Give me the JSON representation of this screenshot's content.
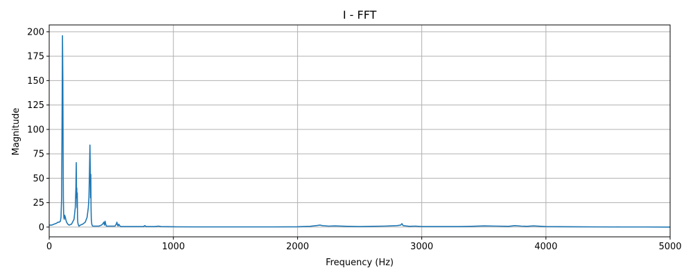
{
  "chart_data": {
    "type": "line",
    "title": "I - FFT",
    "xlabel": "Frequency (Hz)",
    "ylabel": "Magnitude",
    "xlim": [
      0,
      5000
    ],
    "ylim": [
      -10,
      207
    ],
    "xticks": [
      0,
      1000,
      2000,
      3000,
      4000,
      5000
    ],
    "xtick_labels": [
      "0",
      "1000",
      "2000",
      "3000",
      "4000",
      "5000"
    ],
    "yticks": [
      0,
      25,
      50,
      75,
      100,
      125,
      150,
      175,
      200
    ],
    "ytick_labels": [
      "0",
      "25",
      "50",
      "75",
      "100",
      "125",
      "150",
      "175",
      "200"
    ],
    "grid": true,
    "series": [
      {
        "color": "#1f77b4",
        "x": [
          0,
          20,
          40,
          60,
          70,
          80,
          90,
          95,
          100,
          104,
          107,
          110,
          112,
          114,
          116,
          118,
          121,
          125,
          130,
          135,
          140,
          150,
          160,
          180,
          200,
          210,
          215,
          218,
          220,
          222,
          224,
          226,
          228,
          230,
          233,
          236,
          240,
          250,
          270,
          290,
          305,
          315,
          320,
          325,
          328,
          331,
          333,
          335,
          337,
          339,
          341,
          343,
          345,
          350,
          360,
          380,
          400,
          420,
          430,
          440,
          445,
          450,
          455,
          460,
          470,
          500,
          530,
          540,
          545,
          550,
          555,
          560,
          570,
          580,
          600,
          650,
          700,
          760,
          770,
          780,
          800,
          850,
          880,
          900,
          1000,
          1200,
          1500,
          1800,
          2000,
          2100,
          2150,
          2180,
          2200,
          2250,
          2300,
          2400,
          2500,
          2600,
          2700,
          2750,
          2800,
          2830,
          2840,
          2850,
          2900,
          2950,
          3000,
          3100,
          3200,
          3300,
          3400,
          3500,
          3600,
          3700,
          3750,
          3800,
          3850,
          3900,
          4000,
          4200,
          4400,
          4600,
          4800,
          5000
        ],
        "y": [
          2,
          2,
          3,
          4,
          5,
          5,
          6,
          10,
          30,
          120,
          196,
          150,
          80,
          30,
          15,
          10,
          8,
          12,
          10,
          7,
          5,
          3,
          2,
          3,
          8,
          20,
          40,
          66,
          30,
          40,
          20,
          35,
          10,
          5,
          3,
          2,
          1,
          2,
          3,
          5,
          10,
          20,
          30,
          60,
          84,
          55,
          30,
          54,
          20,
          8,
          5,
          3,
          2,
          1,
          1,
          1,
          1,
          2,
          3,
          5,
          2,
          6,
          3,
          1,
          1,
          1,
          1,
          3,
          5,
          2,
          1,
          3,
          1,
          0.5,
          0.5,
          0.5,
          0.5,
          0.5,
          1.5,
          0.5,
          0.5,
          0.5,
          1,
          0.5,
          0.3,
          0.2,
          0.2,
          0.2,
          0.3,
          0.8,
          1.5,
          2,
          1.5,
          1,
          1.2,
          0.8,
          0.5,
          0.8,
          1,
          1.2,
          1.5,
          2,
          3.5,
          1.5,
          0.8,
          1,
          0.5,
          0.5,
          0.5,
          0.5,
          0.8,
          1.2,
          1,
          0.8,
          1.5,
          1,
          0.8,
          1.2,
          0.5,
          0.3,
          0.2,
          0.1,
          0.1,
          0
        ]
      }
    ]
  }
}
